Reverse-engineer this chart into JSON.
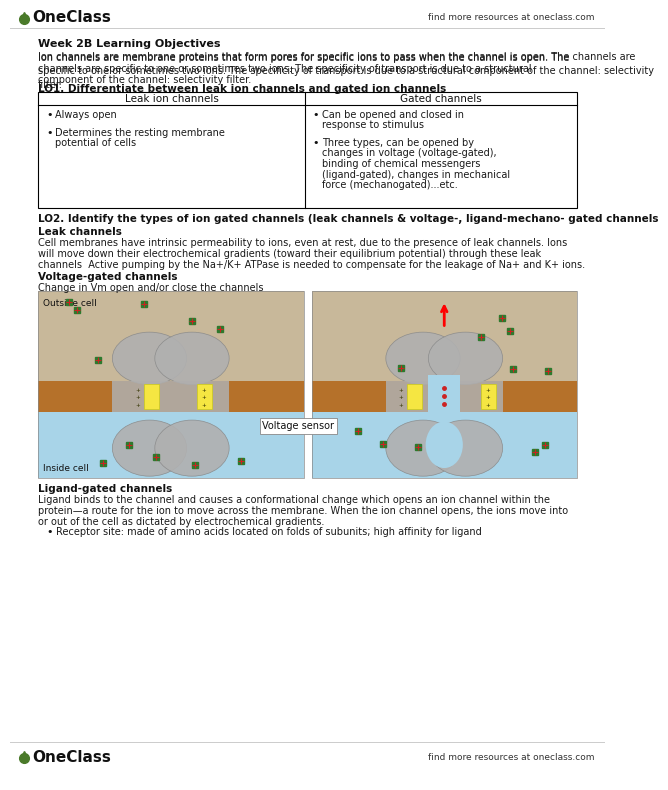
{
  "bg_color": "#ffffff",
  "header_right_text": "find more resources at oneclass.com",
  "footer_right_text": "find more resources at oneclass.com",
  "section_title": "Week 2B Learning Objectives",
  "intro_text": "Ion channels are membrane proteins that form pores for specific ions to pass when the channel is open. The channels are specific to one or sometimes two ions. The specificity of transport is due to a structural component of the channel: selectivity filter.",
  "lo1_heading": "LO1. Differentiate between leak ion channels and gated ion channels",
  "table_col1_header": "Leak ion channels",
  "table_col2_header": "Gated channels",
  "table_col1_bullets": [
    "Always open",
    "Determines the resting membrane\npotential of cells"
  ],
  "table_col2_bullets": [
    "Can be opened and closed in\nresponse to stimulus",
    "Three types, can be opened by\nchanges in voltage (voltage-gated),\nbinding of chemical messengers\n(ligand-gated), changes in mechanical\nforce (mechanogated)...etc."
  ],
  "lo2_heading": "LO2. Identify the types of ion gated channels (leak channels & voltage-, ligand-mechano- gated channels",
  "leak_heading": "Leak channels",
  "leak_text": "Cell membranes have intrinsic permeability to ions, even at rest, due to the presence of leak channels. Ions\nwill move down their electrochemical gradients (toward their equilibrium potential) through these leak\nchannels  Active pumping by the Na+/K+ ATPase is needed to compensate for the leakage of Na+ and K+ ions.",
  "voltage_heading": "Voltage-gated channels",
  "voltage_subtext": "Change in Vm open and/or close the channels",
  "outside_cell_label": "Outside cell",
  "inside_cell_label": "Inside cell",
  "voltage_sensor_label": "Voltage sensor",
  "ligand_heading": "Ligand-gated channels",
  "ligand_text": "Ligand binds to the channel and causes a conformational change which opens an ion channel within the\nprotein—a route for the ion to move across the membrane. When the ion channel opens, the ions move into\nor out of the cell as dictated by electrochemical gradients.",
  "ligand_bullet": "Receptor site: made of amino acids located on folds of subunits; high affinity for ligand",
  "logo_green": "#4a7a2a",
  "text_color": "#1a1a1a",
  "outside_color": "#c8b89a",
  "membrane_color": "#b5712a",
  "inside_color": "#a8d4e8",
  "channel_gray": "#b0b0b0",
  "ion_green": "#2d7a2d",
  "ion_red": "#cc2222"
}
